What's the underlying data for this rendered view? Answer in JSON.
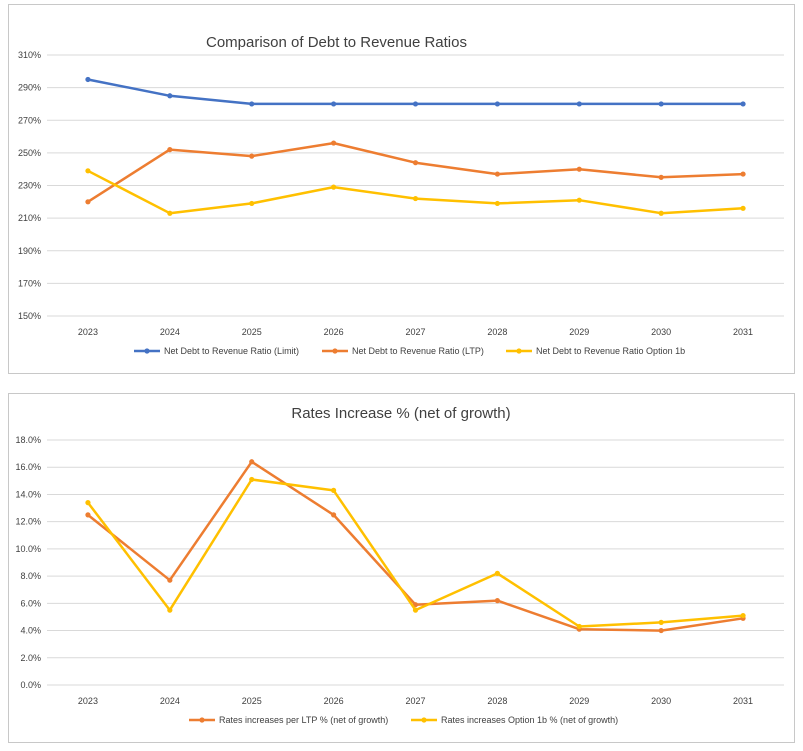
{
  "chart_data": [
    {
      "type": "line",
      "title": "Comparison of Debt to Revenue Ratios",
      "xlabel": "",
      "ylabel": "",
      "categories": [
        "2023",
        "2024",
        "2025",
        "2026",
        "2027",
        "2028",
        "2029",
        "2030",
        "2031"
      ],
      "ylim": [
        150,
        310
      ],
      "yticks": [
        "310%",
        "290%",
        "270%",
        "250%",
        "230%",
        "210%",
        "190%",
        "170%",
        "150%"
      ],
      "ytick_values": [
        310,
        290,
        270,
        250,
        230,
        210,
        190,
        170,
        150
      ],
      "grid": "horizontal",
      "legend": "bottom",
      "series": [
        {
          "name": "Net Debt to Revenue Ratio (Limit)",
          "color": "#4472c4",
          "values": [
            295,
            285,
            280,
            280,
            280,
            280,
            280,
            280,
            280
          ]
        },
        {
          "name": "Net Debt to Revenue Ratio (LTP)",
          "color": "#ed7d31",
          "values": [
            220,
            252,
            248,
            256,
            244,
            237,
            240,
            235,
            237
          ]
        },
        {
          "name": "Net Debt to Revenue Ratio Option 1b",
          "color": "#ffc000",
          "values": [
            239,
            213,
            219,
            229,
            222,
            219,
            221,
            213,
            216
          ]
        }
      ]
    },
    {
      "type": "line",
      "title": "Rates Increase % (net of growth)",
      "xlabel": "",
      "ylabel": "",
      "categories": [
        "2023",
        "2024",
        "2025",
        "2026",
        "2027",
        "2028",
        "2029",
        "2030",
        "2031"
      ],
      "ylim": [
        0,
        18
      ],
      "yticks": [
        "18.0%",
        "16.0%",
        "14.0%",
        "12.0%",
        "10.0%",
        "8.0%",
        "6.0%",
        "4.0%",
        "2.0%",
        "0.0%"
      ],
      "ytick_values": [
        18,
        16,
        14,
        12,
        10,
        8,
        6,
        4,
        2,
        0
      ],
      "grid": "horizontal",
      "legend": "bottom",
      "series": [
        {
          "name": "Rates increases per LTP % (net of growth)",
          "color": "#ed7d31",
          "values": [
            12.5,
            7.7,
            16.4,
            12.5,
            5.9,
            6.2,
            4.1,
            4.0,
            4.9
          ]
        },
        {
          "name": "Rates increases Option 1b % (net of growth)",
          "color": "#ffc000",
          "values": [
            13.4,
            5.5,
            15.1,
            14.3,
            5.5,
            8.2,
            4.3,
            4.6,
            5.1
          ]
        }
      ]
    }
  ]
}
